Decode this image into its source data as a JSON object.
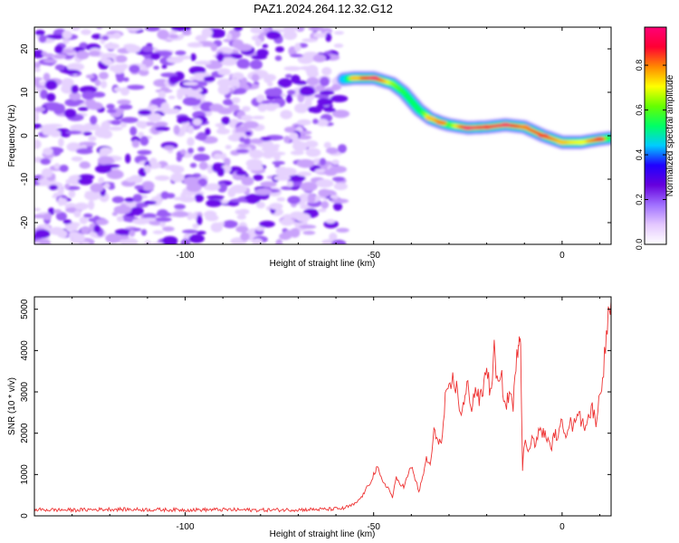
{
  "title": "PAZ1.2024.264.12.32.G12",
  "chart_data": [
    {
      "type": "heatmap",
      "xlabel": "Height of straight line (km)",
      "ylabel": "Frequency (Hz)",
      "xlim": [
        -140,
        13
      ],
      "ylim": [
        -25,
        25
      ],
      "xticks": [
        -100,
        -50,
        0
      ],
      "yticks": [
        -20,
        -10,
        0,
        10,
        20
      ],
      "colorbar": {
        "label": "Normalized spectral amplitude",
        "range": [
          0,
          0.97
        ],
        "ticks": [
          0,
          0.2,
          0.4,
          0.6,
          0.8
        ],
        "tick_labels": [
          "0.0",
          "0.2",
          "0.4",
          "0.6",
          "0.8"
        ],
        "colors": [
          "#ffffff",
          "#e4c8ff",
          "#a070ff",
          "#6600dd",
          "#2000ff",
          "#00ccff",
          "#00ff66",
          "#66ff00",
          "#ffff00",
          "#ff8800",
          "#ff0033",
          "#ff0077"
        ]
      },
      "noise_region": {
        "x_range": [
          -140,
          -58
        ],
        "y_range": [
          -25,
          25
        ],
        "amplitude_range": [
          0,
          0.15
        ]
      },
      "signal_track": {
        "x": [
          -58,
          -55,
          -50,
          -45,
          -42,
          -40,
          -38,
          -35,
          -32,
          -30,
          -25,
          -20,
          -15,
          -10,
          -5,
          0,
          5,
          10,
          13
        ],
        "y": [
          13,
          13.3,
          13.3,
          12,
          10,
          8,
          6,
          4,
          3,
          2.5,
          1.8,
          2,
          2.5,
          2,
          0,
          -1.5,
          -1.5,
          -0.8,
          -0.5
        ],
        "amplitude": [
          0.3,
          0.75,
          0.95,
          0.65,
          0.55,
          0.5,
          0.45,
          0.75,
          0.8,
          0.55,
          0.95,
          0.9,
          0.95,
          0.8,
          0.85,
          0.75,
          0.7,
          0.85,
          0.4
        ]
      }
    },
    {
      "type": "line",
      "xlabel": "Height of straight line (km)",
      "ylabel": "SNR (10 * v/v)",
      "xlim": [
        -140,
        13
      ],
      "ylim": [
        0,
        5300
      ],
      "xticks": [
        -100,
        -50,
        0
      ],
      "yticks": [
        0,
        1000,
        2000,
        3000,
        4000,
        5000
      ],
      "color": "#ee3333",
      "series": [
        {
          "x": [
            -140,
            -130,
            -120,
            -110,
            -100,
            -90,
            -80,
            -70,
            -62,
            -58,
            -55,
            -53,
            -51,
            -50,
            -49,
            -48,
            -46,
            -45,
            -44,
            -42,
            -40,
            -38,
            -37,
            -36,
            -35,
            -34,
            -33,
            -32,
            -31,
            -30,
            -29,
            -28,
            -27,
            -26,
            -25,
            -24,
            -23,
            -22,
            -21,
            -20,
            -19,
            -18,
            -17,
            -16,
            -15,
            -14,
            -13,
            -12,
            -11.5,
            -11,
            -10.5,
            -10,
            -9,
            -8,
            -7,
            -6,
            -5,
            -4,
            -3,
            -2,
            -1,
            0,
            1,
            2,
            3,
            4,
            5,
            6,
            7,
            8,
            9,
            10,
            11,
            12,
            13
          ],
          "y": [
            150,
            140,
            160,
            150,
            145,
            150,
            140,
            150,
            160,
            180,
            280,
            480,
            800,
            1000,
            1150,
            900,
            650,
            450,
            900,
            700,
            1200,
            600,
            900,
            1400,
            1200,
            2000,
            1900,
            1700,
            2800,
            3000,
            3300,
            3100,
            2500,
            2700,
            3200,
            2600,
            3100,
            2800,
            3000,
            3700,
            2900,
            4000,
            3100,
            3300,
            2600,
            3000,
            2700,
            3800,
            4400,
            4300,
            1100,
            1800,
            1600,
            1900,
            1700,
            2100,
            2000,
            1900,
            1600,
            2000,
            1900,
            2300,
            2000,
            2300,
            2100,
            2600,
            2300,
            2200,
            2400,
            2600,
            2300,
            2900,
            3600,
            4600,
            5200
          ]
        }
      ]
    }
  ]
}
